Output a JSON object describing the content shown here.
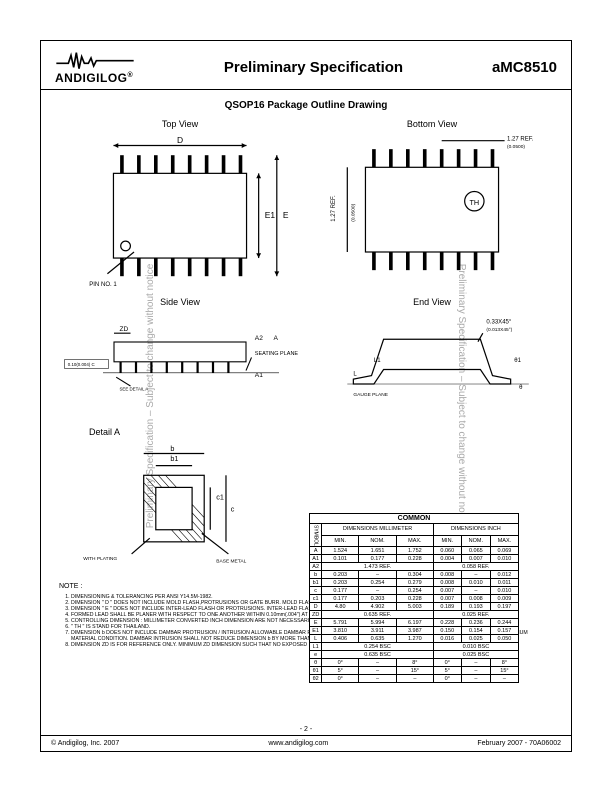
{
  "side_text": "Preliminary Specification – Subject to change without notice",
  "header": {
    "brand": "ANDIGILOG",
    "doc_title": "Preliminary Specification",
    "part": "aMC8510"
  },
  "section_title": "QSOP16 Package Outline Drawing",
  "views": {
    "top": "Top View",
    "bottom": "Bottom View",
    "side": "Side View",
    "end": "End View",
    "detail": "Detail A"
  },
  "labels": {
    "pin1": "PIN NO. 1",
    "seating": "SEATING PLANE",
    "gauge": "GAUGE PLANE",
    "withplating": "WITH PLATING",
    "basemetal": "BASE METAL",
    "seedetail": "SEE DETAIL A",
    "ref127": "1.27 REF.",
    "ref127sub": "(0.0500)",
    "endnote": "0.33X45°",
    "endnote2": "(0.013X45°)",
    "tol": "0.10(0.004) C"
  },
  "notes_title": "NOTE :",
  "notes": [
    "DIMENSIONING & TOLERANCING PER ANSI Y14.5M-1982.",
    "DIMENSION \" D \" DOES NOT INCLUDE MOLD FLASH,PROTRUSIONS OR GATE BURR. MOLD FLASH,PROTRUSION OR GATE BURRS SHALL NOT EXCEED 0.152mm(0.006\") PER SIDE.",
    "DIMENSION \" E \" DOES NOT INCLUDE INTER-LEAD FLASH OR PROTRUSIONS. INTER-LEAD FLASH OR PROTRUSIONS SHALL NOT EXCEED 0.254mm(0.010\") PER SIDE.",
    "FORMED LEAD SHALL BE PLANER WITH RESPECT TO ONE ANOTHER WITHIN 0.10mm(.004\") AT SEATING PLANE.",
    "CONTROLLING DIMENSION : MILLIMETER CONVERTED INCH DIMENSION ARE NOT NECESSARILY EXACT.",
    "\" TH \" IS STAND FOR THAILAND.",
    "DIMENSION b DOES NOT INCLUDE DAMBAR PROTRUSION / INTRUSION ALLOWABLE DAMBAR PROTRUSION SHALL BE 0.10mm(.004\") TOTAL IN EXCESS OF b DIMENSION AT MAXIMUM MATERIAL CONDITION. DAMBAR INTRUSION SHALL NOT REDUCE DIMENSION b BY MORE THAN 0.07mm(.003\") AT LEAST MATERIAL CONDITION.",
    "DIMENSION ZD IS FOR REFERENCE ONLY. MINIMUM ZD DIMENSION SUCH THAT NO EXPOSED LEAD FRAME MATERIAL IS ALLOWED FOR END LEADS."
  ],
  "table": {
    "title": "COMMON",
    "hdr_mm": "DIMENSIONS MILLIMETER",
    "hdr_in": "DIMENSIONS INCH",
    "subhdr": [
      "MIN.",
      "NOM.",
      "MAX.",
      "MIN.",
      "NOM.",
      "MAX."
    ],
    "rows": [
      {
        "s": "A",
        "v": [
          "1.524",
          "1.651",
          "1.752",
          "0.060",
          "0.065",
          "0.069"
        ]
      },
      {
        "s": "A1",
        "v": [
          "0.101",
          "0.177",
          "0.228",
          "0.004",
          "0.007",
          "0.010"
        ]
      },
      {
        "s": "A2",
        "v": [
          "",
          "1.473 REF.",
          "",
          "",
          "0.058 REF.",
          ""
        ]
      },
      {
        "s": "b",
        "v": [
          "0.203",
          "–",
          "0.304",
          "0.008",
          "–",
          "0.012"
        ]
      },
      {
        "s": "b1",
        "v": [
          "0.203",
          "0.254",
          "0.279",
          "0.008",
          "0.010",
          "0.011"
        ]
      },
      {
        "s": "c",
        "v": [
          "0.177",
          "–",
          "0.254",
          "0.007",
          "–",
          "0.010"
        ]
      },
      {
        "s": "c1",
        "v": [
          "0.177",
          "0.203",
          "0.228",
          "0.007",
          "0.008",
          "0.009"
        ]
      },
      {
        "s": "D",
        "v": [
          "4.80",
          "4.902",
          "5.003",
          "0.189",
          "0.193",
          "0.197"
        ]
      },
      {
        "s": "ZD",
        "v": [
          "",
          "0.635 REF.",
          "",
          "",
          "0.025 REF.",
          ""
        ]
      },
      {
        "s": "E",
        "v": [
          "5.791",
          "5.994",
          "6.197",
          "0.228",
          "0.236",
          "0.244"
        ]
      },
      {
        "s": "E1",
        "v": [
          "3.810",
          "3.911",
          "3.987",
          "0.150",
          "0.154",
          "0.157"
        ]
      },
      {
        "s": "L",
        "v": [
          "0.406",
          "0.635",
          "1.270",
          "0.016",
          "0.025",
          "0.050"
        ]
      },
      {
        "s": "L1",
        "v": [
          "",
          "0.254 BSC",
          "",
          "",
          "0.010 BSC",
          ""
        ]
      },
      {
        "s": "e",
        "v": [
          "",
          "0.635 BSC",
          "",
          "",
          "0.025 BSC",
          ""
        ]
      },
      {
        "s": "θ",
        "v": [
          "0°",
          "–",
          "8°",
          "0°",
          "–",
          "8°"
        ]
      },
      {
        "s": "θ1",
        "v": [
          "5°",
          "–",
          "15°",
          "5°",
          "–",
          "15°"
        ]
      },
      {
        "s": "θ2",
        "v": [
          "0°",
          "–",
          "–",
          "0°",
          "–",
          "–"
        ]
      }
    ]
  },
  "footer": {
    "left": "© Andigilog, Inc. 2007",
    "center": "www.andigilog.com",
    "right": "February 2007 - 70A06002",
    "page": "- 2 -"
  }
}
